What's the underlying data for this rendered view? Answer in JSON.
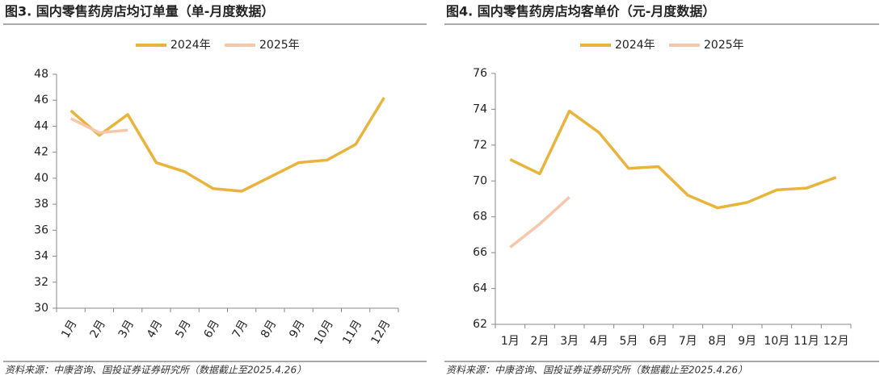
{
  "chart_data": [
    {
      "type": "line",
      "title": "图3. 国内零售药房店均订单量（单-月度数据）",
      "categories": [
        "1月",
        "2月",
        "3月",
        "4月",
        "5月",
        "6月",
        "7月",
        "8月",
        "9月",
        "10月",
        "11月",
        "12月"
      ],
      "series": [
        {
          "name": "2024年",
          "color": "#e9b43c",
          "values": [
            45.2,
            43.3,
            44.9,
            41.2,
            40.5,
            39.2,
            39.0,
            40.1,
            41.2,
            41.4,
            42.6,
            46.2
          ]
        },
        {
          "name": "2025年",
          "color": "#f6c7ab",
          "values": [
            44.6,
            43.5,
            43.7,
            null,
            null,
            null,
            null,
            null,
            null,
            null,
            null,
            null
          ]
        }
      ],
      "ylim": [
        30,
        48
      ],
      "yticks": [
        30,
        32,
        34,
        36,
        38,
        40,
        42,
        44,
        46,
        48
      ],
      "source": "资料来源：中康咨询、国投证券证券研究所（数据截止至2025.4.26）"
    },
    {
      "type": "line",
      "title": "图4. 国内零售药房店均客单价（元-月度数据）",
      "categories": [
        "1月",
        "2月",
        "3月",
        "4月",
        "5月",
        "6月",
        "7月",
        "8月",
        "9月",
        "10月",
        "11月",
        "12月"
      ],
      "series": [
        {
          "name": "2024年",
          "color": "#e9b43c",
          "values": [
            71.2,
            70.4,
            73.9,
            72.7,
            70.7,
            70.8,
            69.2,
            68.5,
            68.8,
            69.5,
            69.6,
            70.2
          ]
        },
        {
          "name": "2025年",
          "color": "#f6c7ab",
          "values": [
            66.3,
            67.6,
            69.1,
            null,
            null,
            null,
            null,
            null,
            null,
            null,
            null,
            null
          ]
        }
      ],
      "ylim": [
        62,
        76
      ],
      "yticks": [
        62,
        64,
        66,
        68,
        70,
        72,
        74,
        76
      ],
      "source": "资料来源：中康咨询、国投证券证券研究所（数据截止至2025.4.26）"
    }
  ]
}
